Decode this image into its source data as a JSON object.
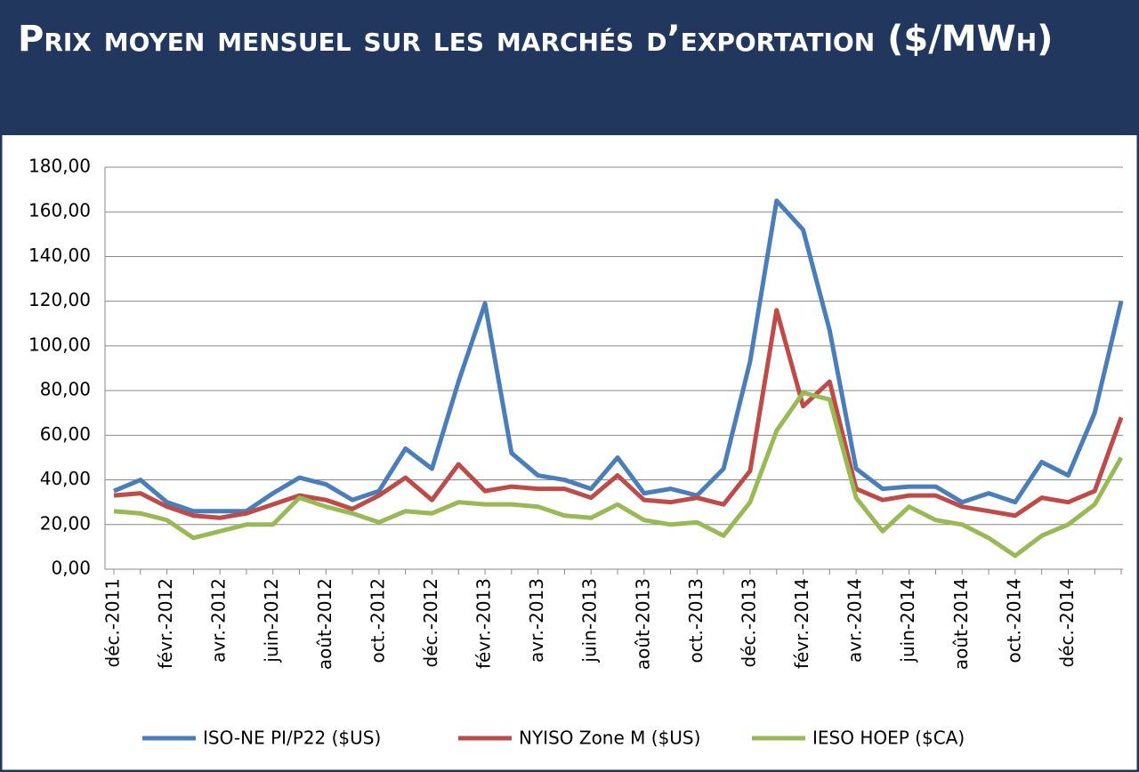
{
  "chart_data": {
    "type": "line",
    "title": "Prix moyen mensuel sur les marchés d’exportation ($/MWh)",
    "categories": [
      "déc.-2011",
      null,
      "févr.-2012",
      null,
      "avr.-2012",
      null,
      "juin-2012",
      null,
      "août-2012",
      null,
      "oct.-2012",
      null,
      "déc.-2012",
      null,
      "févr.-2013",
      null,
      "avr.-2013",
      null,
      "juin-2013",
      null,
      "août-2013",
      null,
      "oct.-2013",
      null,
      "déc.-2013",
      null,
      "févr.-2014",
      null,
      "avr.-2014",
      null,
      "juin-2014",
      null,
      "août-2014",
      null,
      "oct.-2014",
      null,
      "déc.-2014",
      null,
      null
    ],
    "series": [
      {
        "name": "ISO-NE PI/P22 ($US)",
        "color": "#4a7ebb",
        "values": [
          35,
          40,
          30,
          26,
          26,
          26,
          34,
          41,
          38,
          31,
          35,
          54,
          45,
          84,
          119,
          52,
          42,
          40,
          36,
          50,
          34,
          36,
          33,
          45,
          93,
          165,
          152,
          107,
          45,
          36,
          37,
          37,
          30,
          34,
          30,
          48,
          42,
          70,
          120
        ]
      },
      {
        "name": "NYISO Zone M ($US)",
        "color": "#be4b48",
        "values": [
          33,
          34,
          28,
          24,
          23,
          25,
          29,
          33,
          31,
          27,
          33,
          41,
          31,
          47,
          35,
          37,
          36,
          36,
          32,
          42,
          31,
          30,
          32,
          29,
          44,
          116,
          73,
          84,
          36,
          31,
          33,
          33,
          28,
          26,
          24,
          32,
          30,
          35,
          68
        ]
      },
      {
        "name": "IESO HOEP ($CA)",
        "color": "#98b954",
        "values": [
          26,
          25,
          22,
          14,
          17,
          20,
          20,
          32,
          28,
          25,
          21,
          26,
          25,
          30,
          29,
          29,
          28,
          24,
          23,
          29,
          22,
          20,
          21,
          15,
          30,
          62,
          79,
          76,
          32,
          17,
          28,
          22,
          20,
          14,
          6,
          15,
          20,
          29,
          50
        ]
      }
    ],
    "ylim": [
      0,
      180
    ],
    "yticks": [
      {
        "value": 0,
        "label": "0,00"
      },
      {
        "value": 20,
        "label": "20,00"
      },
      {
        "value": 40,
        "label": "40,00"
      },
      {
        "value": 60,
        "label": "60,00"
      },
      {
        "value": 80,
        "label": "80,00"
      },
      {
        "value": 100,
        "label": "100,00"
      },
      {
        "value": 120,
        "label": "120,00"
      },
      {
        "value": 140,
        "label": "140,00"
      },
      {
        "value": 160,
        "label": "160,00"
      },
      {
        "value": 180,
        "label": "180,00"
      }
    ],
    "grid": true,
    "legend": "bottom"
  }
}
